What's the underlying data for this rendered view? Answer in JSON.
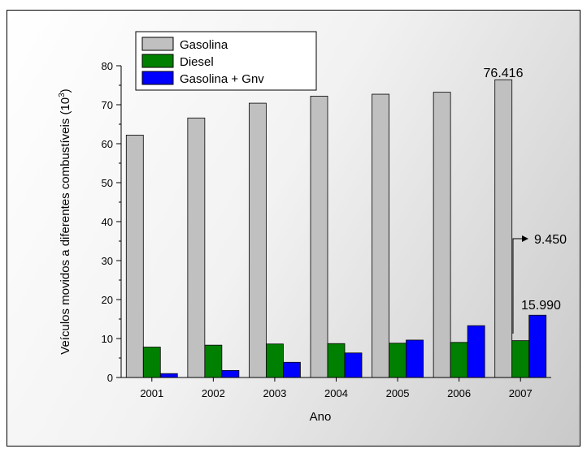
{
  "chart_data": {
    "type": "bar",
    "categories": [
      "2001",
      "2002",
      "2003",
      "2004",
      "2005",
      "2006",
      "2007"
    ],
    "series": [
      {
        "name": "Gasolina",
        "color": "#c0c0c0",
        "values": [
          62.2,
          66.6,
          70.4,
          72.2,
          72.7,
          73.2,
          76.416
        ]
      },
      {
        "name": "Diesel",
        "color": "#008000",
        "values": [
          7.8,
          8.3,
          8.6,
          8.7,
          8.8,
          9.0,
          9.45
        ]
      },
      {
        "name": "Gasolina + Gnv",
        "color": "#0000ff",
        "values": [
          1.0,
          1.8,
          3.9,
          6.3,
          9.6,
          13.3,
          15.99
        ]
      }
    ],
    "xlabel": "Ano",
    "ylabel": "Veículos movidos a diferentes combustíveis (10",
    "ylabel_sup": "3",
    "ylabel_end": ")",
    "ylim": [
      0,
      80
    ],
    "yticks": [
      "0",
      "10",
      "20",
      "30",
      "40",
      "50",
      "60",
      "70",
      "80"
    ],
    "legend_position": "top-left",
    "annotations": {
      "gasolina_2007": "76.416",
      "diesel_2007": "9.450",
      "gnv_2007": "15.990"
    }
  }
}
